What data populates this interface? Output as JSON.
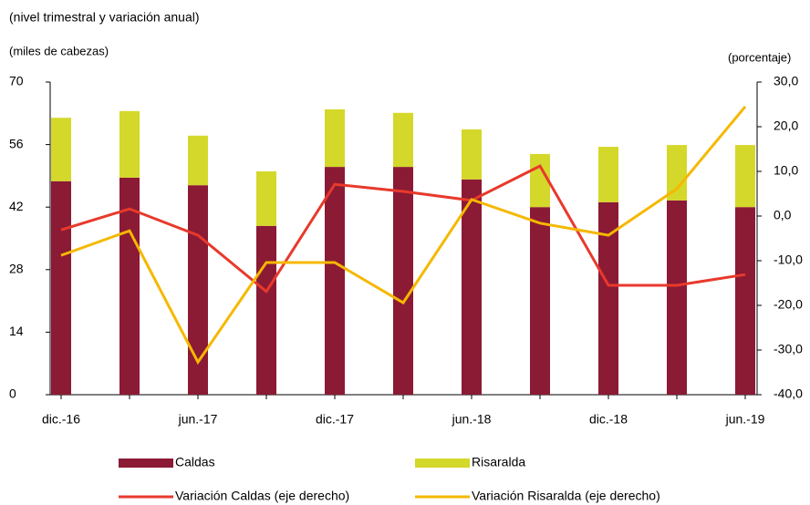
{
  "chart_data": {
    "type": "bar_line",
    "subtitle": "(nivel trimestral y variación anual)",
    "ylabel": "(miles de cabezas)",
    "y2label": "(porcentaje)",
    "categories": [
      "dic.-16",
      null,
      "jun.-17",
      null,
      "dic.-17",
      null,
      "jun.-18",
      null,
      "dic.-18",
      null,
      "jun.-19"
    ],
    "series": [
      {
        "name": "Caldas",
        "color": "#8b1a35",
        "kind": "bar",
        "values": [
          47.8,
          48.6,
          46.9,
          37.8,
          51.0,
          51.0,
          48.2,
          42.0,
          43.1,
          43.5,
          42.0
        ]
      },
      {
        "name": "Risaralda",
        "color": "#d4d82a",
        "kind": "bar",
        "values": [
          14.2,
          14.9,
          11.1,
          12.2,
          12.9,
          12.1,
          11.2,
          11.9,
          12.4,
          12.4,
          13.9
        ]
      },
      {
        "name": "Variación Caldas (eje derecho)",
        "color": "#e8392b",
        "kind": "line",
        "axis": "y2",
        "values": [
          -3.1,
          1.6,
          -4.3,
          -16.9,
          7.1,
          5.5,
          3.5,
          11.2,
          -15.5,
          -15.5,
          -13.1
        ]
      },
      {
        "name": "Variación Risaralda (eje derecho)",
        "color": "#f5b800",
        "kind": "line",
        "axis": "y2",
        "values": [
          -8.8,
          -3.3,
          -32.7,
          -10.4,
          -10.4,
          -19.4,
          3.7,
          -1.6,
          -4.3,
          6.1,
          24.5
        ]
      }
    ],
    "ylim": [
      0,
      70
    ],
    "yticks": [
      0,
      14,
      28,
      42,
      56,
      70
    ],
    "y2lim": [
      -40,
      30
    ],
    "y2ticks": [
      {
        "value": -40,
        "label": "-40,0"
      },
      {
        "value": -30,
        "label": "-30,0"
      },
      {
        "value": -20,
        "label": "-20,0"
      },
      {
        "value": -10,
        "label": "-10,0"
      },
      {
        "value": 0,
        "label": "0,0"
      },
      {
        "value": 10,
        "label": "10,0"
      },
      {
        "value": 20,
        "label": "20,0"
      },
      {
        "value": 30,
        "label": "30,0"
      }
    ]
  }
}
